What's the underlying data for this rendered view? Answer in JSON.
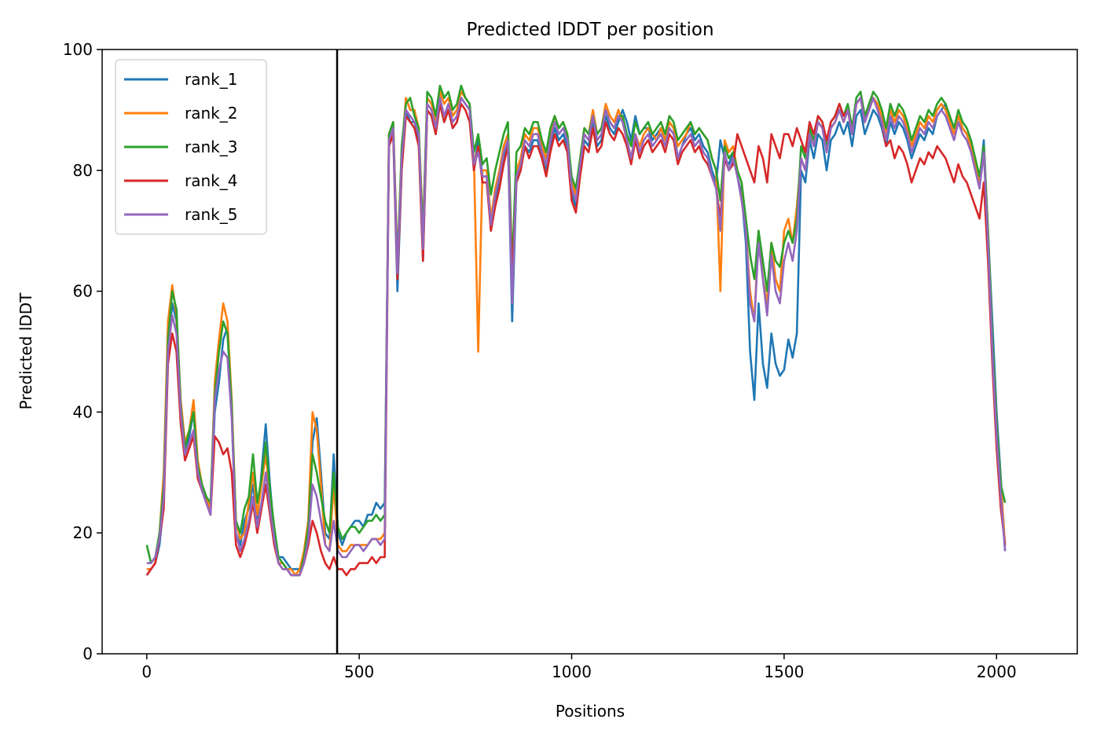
{
  "chart_data": {
    "type": "line",
    "title": "Predicted lDDT per position",
    "xlabel": "Positions",
    "ylabel": "Predicted lDDT",
    "xlim": [
      -105,
      2190
    ],
    "ylim": [
      0,
      100
    ],
    "xticks": [
      0,
      500,
      1000,
      1500,
      2000
    ],
    "yticks": [
      0,
      20,
      40,
      60,
      80,
      100
    ],
    "grid": false,
    "legend_position": "top-left",
    "vline_x": 448,
    "x_start": 0,
    "x_step": 10,
    "series": [
      {
        "name": "rank_1",
        "color": "#1f77b4",
        "values": [
          13,
          14,
          15,
          18,
          25,
          50,
          58,
          55,
          40,
          33,
          36,
          40,
          30,
          28,
          26,
          24,
          40,
          45,
          52,
          54,
          40,
          20,
          18,
          22,
          24,
          28,
          22,
          30,
          38,
          28,
          20,
          16,
          16,
          15,
          14,
          14,
          14,
          15,
          20,
          35,
          39,
          30,
          20,
          19,
          33,
          20,
          18,
          20,
          21,
          22,
          22,
          21,
          23,
          23,
          25,
          24,
          25,
          84,
          86,
          60,
          80,
          90,
          88,
          88,
          85,
          65,
          90,
          89,
          86,
          91,
          88,
          90,
          87,
          88,
          92,
          91,
          90,
          80,
          85,
          79,
          79,
          70,
          75,
          78,
          82,
          85,
          55,
          78,
          80,
          84,
          83,
          85,
          85,
          82,
          80,
          84,
          87,
          85,
          86,
          84,
          76,
          74,
          80,
          85,
          84,
          88,
          84,
          85,
          89,
          87,
          86,
          88,
          90,
          88,
          85,
          89,
          86,
          87,
          87,
          85,
          86,
          87,
          85,
          88,
          87,
          82,
          84,
          86,
          87,
          85,
          86,
          84,
          83,
          80,
          78,
          85,
          82,
          81,
          83,
          79,
          76,
          68,
          50,
          42,
          58,
          48,
          44,
          53,
          48,
          46,
          47,
          52,
          49,
          53,
          80,
          78,
          85,
          82,
          86,
          85,
          80,
          85,
          86,
          88,
          86,
          88,
          84,
          89,
          90,
          86,
          88,
          90,
          89,
          87,
          84,
          88,
          86,
          88,
          87,
          85,
          82,
          84,
          86,
          85,
          87,
          86,
          89,
          90,
          91,
          88,
          86,
          89,
          87,
          86,
          84,
          81,
          78,
          85,
          70,
          55,
          40,
          29,
          17
        ]
      },
      {
        "name": "rank_2",
        "color": "#ff7f0e",
        "values": [
          14,
          14,
          15,
          20,
          30,
          55,
          61,
          56,
          42,
          35,
          37,
          42,
          32,
          28,
          26,
          24,
          45,
          52,
          58,
          55,
          42,
          22,
          19,
          20,
          25,
          30,
          23,
          28,
          33,
          26,
          19,
          15,
          15,
          14,
          14,
          13,
          14,
          17,
          22,
          40,
          37,
          28,
          18,
          17,
          28,
          18,
          17,
          17,
          18,
          18,
          18,
          18,
          18,
          19,
          19,
          19,
          20,
          86,
          88,
          65,
          83,
          92,
          90,
          90,
          87,
          70,
          92,
          91,
          88,
          93,
          91,
          92,
          89,
          90,
          93,
          92,
          91,
          82,
          50,
          80,
          80,
          72,
          77,
          80,
          84,
          86,
          62,
          80,
          82,
          86,
          85,
          87,
          87,
          84,
          82,
          86,
          89,
          87,
          88,
          86,
          78,
          76,
          82,
          87,
          86,
          90,
          86,
          87,
          91,
          89,
          88,
          90,
          88,
          85,
          82,
          86,
          84,
          86,
          87,
          86,
          85,
          87,
          85,
          88,
          87,
          84,
          85,
          86,
          88,
          86,
          87,
          86,
          85,
          82,
          80,
          60,
          85,
          83,
          84,
          80,
          78,
          70,
          60,
          55,
          70,
          62,
          58,
          68,
          62,
          60,
          70,
          72,
          68,
          74,
          82,
          80,
          86,
          84,
          88,
          87,
          83,
          87,
          88,
          90,
          88,
          90,
          86,
          91,
          92,
          88,
          90,
          92,
          91,
          89,
          86,
          90,
          88,
          90,
          89,
          87,
          84,
          86,
          88,
          87,
          89,
          88,
          90,
          91,
          90,
          88,
          86,
          89,
          87,
          86,
          84,
          81,
          78,
          84,
          70,
          52,
          38,
          28,
          18
        ]
      },
      {
        "name": "rank_3",
        "color": "#2ca02c",
        "values": [
          18,
          15,
          16,
          20,
          28,
          52,
          60,
          57,
          41,
          34,
          37,
          40,
          31,
          28,
          26,
          25,
          43,
          50,
          55,
          53,
          41,
          22,
          20,
          24,
          26,
          33,
          25,
          29,
          35,
          27,
          21,
          16,
          15,
          14,
          13,
          13,
          13,
          16,
          21,
          33,
          30,
          26,
          22,
          20,
          30,
          21,
          19,
          20,
          21,
          21,
          20,
          21,
          22,
          22,
          23,
          22,
          23,
          86,
          88,
          64,
          84,
          91,
          92,
          89,
          87,
          69,
          93,
          92,
          89,
          94,
          92,
          93,
          90,
          91,
          94,
          92,
          91,
          83,
          86,
          81,
          82,
          76,
          80,
          83,
          86,
          88,
          64,
          83,
          84,
          87,
          86,
          88,
          88,
          85,
          83,
          87,
          89,
          87,
          88,
          86,
          79,
          77,
          82,
          87,
          86,
          89,
          86,
          87,
          90,
          88,
          87,
          89,
          89,
          86,
          84,
          88,
          86,
          87,
          88,
          86,
          87,
          88,
          86,
          89,
          88,
          85,
          86,
          87,
          88,
          86,
          87,
          86,
          85,
          82,
          80,
          75,
          84,
          82,
          83,
          80,
          78,
          72,
          66,
          62,
          70,
          65,
          60,
          68,
          65,
          64,
          68,
          70,
          68,
          72,
          84,
          82,
          87,
          85,
          89,
          88,
          84,
          88,
          89,
          91,
          89,
          91,
          87,
          92,
          93,
          89,
          91,
          93,
          92,
          90,
          87,
          91,
          89,
          91,
          90,
          88,
          85,
          87,
          89,
          88,
          90,
          89,
          91,
          92,
          91,
          89,
          87,
          90,
          88,
          87,
          85,
          82,
          79,
          84,
          70,
          52,
          38,
          28,
          25
        ]
      },
      {
        "name": "rank_4",
        "color": "#d62728",
        "values": [
          13,
          14,
          15,
          19,
          24,
          48,
          53,
          50,
          38,
          32,
          34,
          36,
          29,
          27,
          25,
          23,
          36,
          35,
          33,
          34,
          30,
          18,
          16,
          18,
          21,
          25,
          20,
          24,
          28,
          23,
          18,
          15,
          14,
          14,
          13,
          13,
          13,
          15,
          18,
          22,
          20,
          17,
          15,
          14,
          16,
          14,
          14,
          13,
          14,
          14,
          15,
          15,
          15,
          16,
          15,
          16,
          16,
          84,
          86,
          62,
          80,
          89,
          88,
          87,
          84,
          65,
          90,
          89,
          86,
          91,
          88,
          90,
          87,
          88,
          91,
          90,
          88,
          80,
          84,
          78,
          78,
          70,
          74,
          77,
          81,
          84,
          62,
          78,
          80,
          84,
          82,
          84,
          84,
          82,
          79,
          83,
          86,
          84,
          85,
          83,
          75,
          73,
          79,
          84,
          83,
          87,
          83,
          84,
          88,
          86,
          85,
          87,
          86,
          84,
          81,
          85,
          82,
          84,
          85,
          83,
          84,
          85,
          83,
          86,
          85,
          81,
          83,
          84,
          85,
          83,
          84,
          82,
          81,
          79,
          77,
          72,
          82,
          80,
          81,
          86,
          84,
          82,
          80,
          78,
          84,
          82,
          78,
          86,
          84,
          82,
          86,
          86,
          84,
          87,
          85,
          83,
          88,
          86,
          89,
          88,
          85,
          88,
          89,
          91,
          89,
          90,
          86,
          91,
          92,
          88,
          90,
          92,
          90,
          88,
          84,
          85,
          82,
          84,
          83,
          81,
          78,
          80,
          82,
          81,
          83,
          82,
          84,
          83,
          82,
          80,
          78,
          81,
          79,
          78,
          76,
          74,
          72,
          78,
          65,
          48,
          34,
          24,
          18
        ]
      },
      {
        "name": "rank_5",
        "color": "#9467bd",
        "values": [
          15,
          15,
          16,
          19,
          26,
          50,
          56,
          53,
          40,
          33,
          35,
          37,
          30,
          27,
          25,
          23,
          42,
          47,
          50,
          49,
          39,
          20,
          17,
          19,
          22,
          26,
          21,
          25,
          30,
          24,
          19,
          15,
          14,
          14,
          13,
          13,
          13,
          15,
          19,
          28,
          26,
          22,
          18,
          17,
          22,
          17,
          16,
          16,
          17,
          18,
          18,
          17,
          18,
          19,
          19,
          18,
          19,
          85,
          87,
          63,
          82,
          90,
          89,
          88,
          86,
          67,
          91,
          90,
          87,
          92,
          89,
          91,
          88,
          89,
          92,
          91,
          90,
          81,
          83,
          79,
          79,
          71,
          76,
          79,
          83,
          85,
          58,
          79,
          81,
          85,
          84,
          86,
          86,
          83,
          81,
          85,
          88,
          86,
          87,
          85,
          77,
          75,
          81,
          86,
          85,
          89,
          85,
          86,
          90,
          88,
          87,
          89,
          88,
          85,
          82,
          86,
          83,
          85,
          86,
          84,
          85,
          86,
          84,
          87,
          86,
          82,
          84,
          85,
          86,
          84,
          85,
          83,
          82,
          79,
          77,
          70,
          83,
          80,
          82,
          79,
          75,
          70,
          58,
          55,
          68,
          62,
          56,
          66,
          60,
          58,
          65,
          68,
          65,
          70,
          82,
          80,
          86,
          84,
          88,
          87,
          83,
          87,
          88,
          90,
          88,
          90,
          86,
          91,
          92,
          88,
          90,
          92,
          90,
          88,
          85,
          89,
          87,
          89,
          88,
          86,
          83,
          85,
          87,
          86,
          88,
          87,
          89,
          90,
          89,
          87,
          85,
          88,
          86,
          85,
          83,
          80,
          77,
          83,
          68,
          50,
          36,
          26,
          17
        ]
      }
    ]
  }
}
